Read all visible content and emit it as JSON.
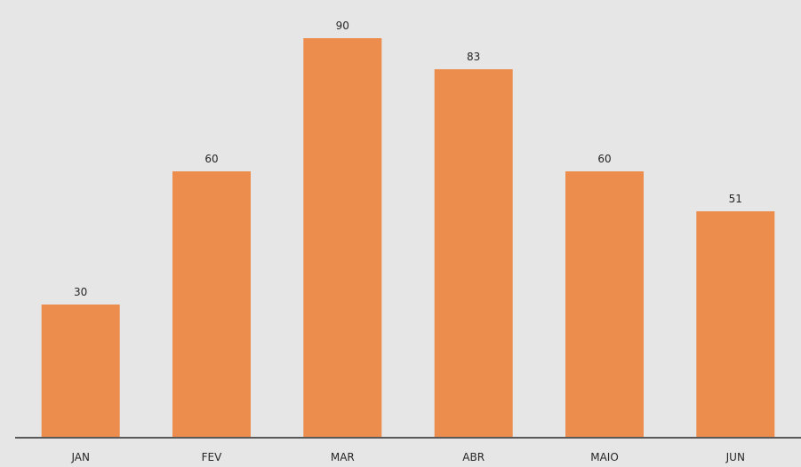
{
  "chart_data": {
    "type": "bar",
    "categories": [
      "JAN",
      "FEV",
      "MAR",
      "ABR",
      "MAIO",
      "JUN"
    ],
    "values": [
      30,
      60,
      90,
      83,
      60,
      51
    ],
    "title": "",
    "xlabel": "",
    "ylabel": "",
    "ylim": [
      0,
      95
    ],
    "grid": false,
    "legend": "none",
    "show_data_labels": true
  },
  "colors": {
    "background": "#e7e6e6",
    "bar": "#ec8c4d",
    "axis": "#595959",
    "text": "#262626"
  }
}
